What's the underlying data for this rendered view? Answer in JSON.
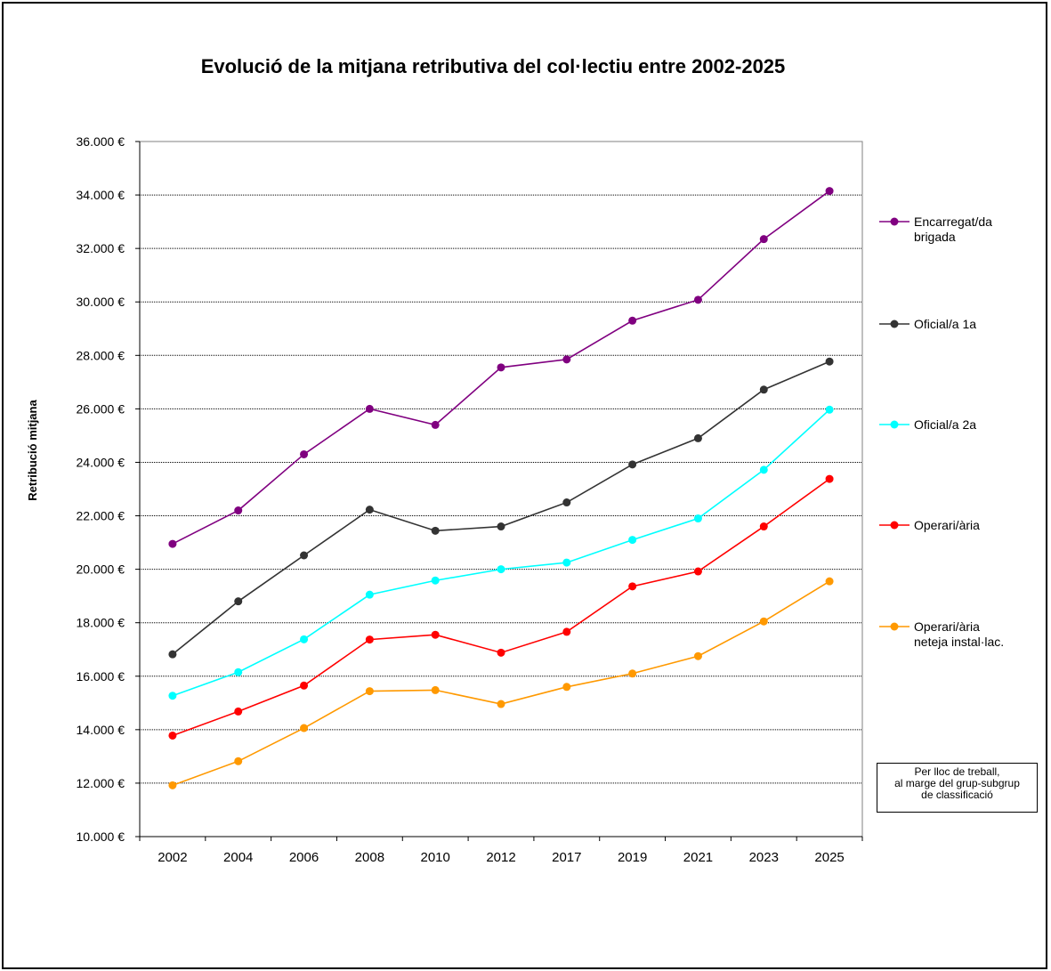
{
  "chart_data": {
    "type": "line",
    "title": "Evolució de la mitjana retributiva del col·lectiu entre 2002-2025",
    "xlabel": "",
    "ylabel": "Retribució mitjana",
    "categories": [
      "2002",
      "2004",
      "2006",
      "2008",
      "2010",
      "2012",
      "2017",
      "2019",
      "2021",
      "2023",
      "2025"
    ],
    "ylim": [
      10000,
      36000
    ],
    "y_ticks": [
      "10.000 €",
      "12.000 €",
      "14.000 €",
      "16.000 €",
      "18.000 €",
      "20.000 €",
      "22.000 €",
      "24.000 €",
      "26.000 €",
      "28.000 €",
      "30.000 €",
      "32.000 €",
      "34.000 €",
      "36.000 €"
    ],
    "grid": "horizontal dotted",
    "legend_position": "right",
    "series": [
      {
        "name": "Encarregat/da brigada",
        "legend_lines": [
          "Encarregat/da",
          "brigada"
        ],
        "color": "#800080",
        "values": [
          20950,
          22200,
          24300,
          26000,
          25400,
          27550,
          27850,
          29300,
          30080,
          32350,
          34150
        ]
      },
      {
        "name": "Oficial/a 1a",
        "legend_lines": [
          "Oficial/a 1a"
        ],
        "color": "#333333",
        "values": [
          16820,
          18800,
          20520,
          22230,
          21440,
          21600,
          22500,
          23920,
          24900,
          26720,
          27770
        ]
      },
      {
        "name": "Oficial/a 2a",
        "legend_lines": [
          "Oficial/a 2a"
        ],
        "color": "#00ffff",
        "values": [
          15270,
          16150,
          17380,
          19050,
          19580,
          20000,
          20250,
          21100,
          21900,
          23720,
          25970
        ]
      },
      {
        "name": "Operari/ària",
        "legend_lines": [
          "Operari/ària"
        ],
        "color": "#ff0000",
        "values": [
          13780,
          14680,
          15650,
          17370,
          17550,
          16880,
          17660,
          19360,
          19920,
          21600,
          23380
        ]
      },
      {
        "name": "Operari/ària neteja instal·lac.",
        "legend_lines": [
          "Operari/ària",
          "neteja instal·lac."
        ],
        "color": "#ff9900",
        "values": [
          11920,
          12820,
          14060,
          15440,
          15480,
          14960,
          15600,
          16100,
          16750,
          18050,
          19550
        ]
      }
    ],
    "annotation": [
      "Per lloc de treball,",
      "al marge del grup-subgrup",
      "de classificació"
    ]
  }
}
